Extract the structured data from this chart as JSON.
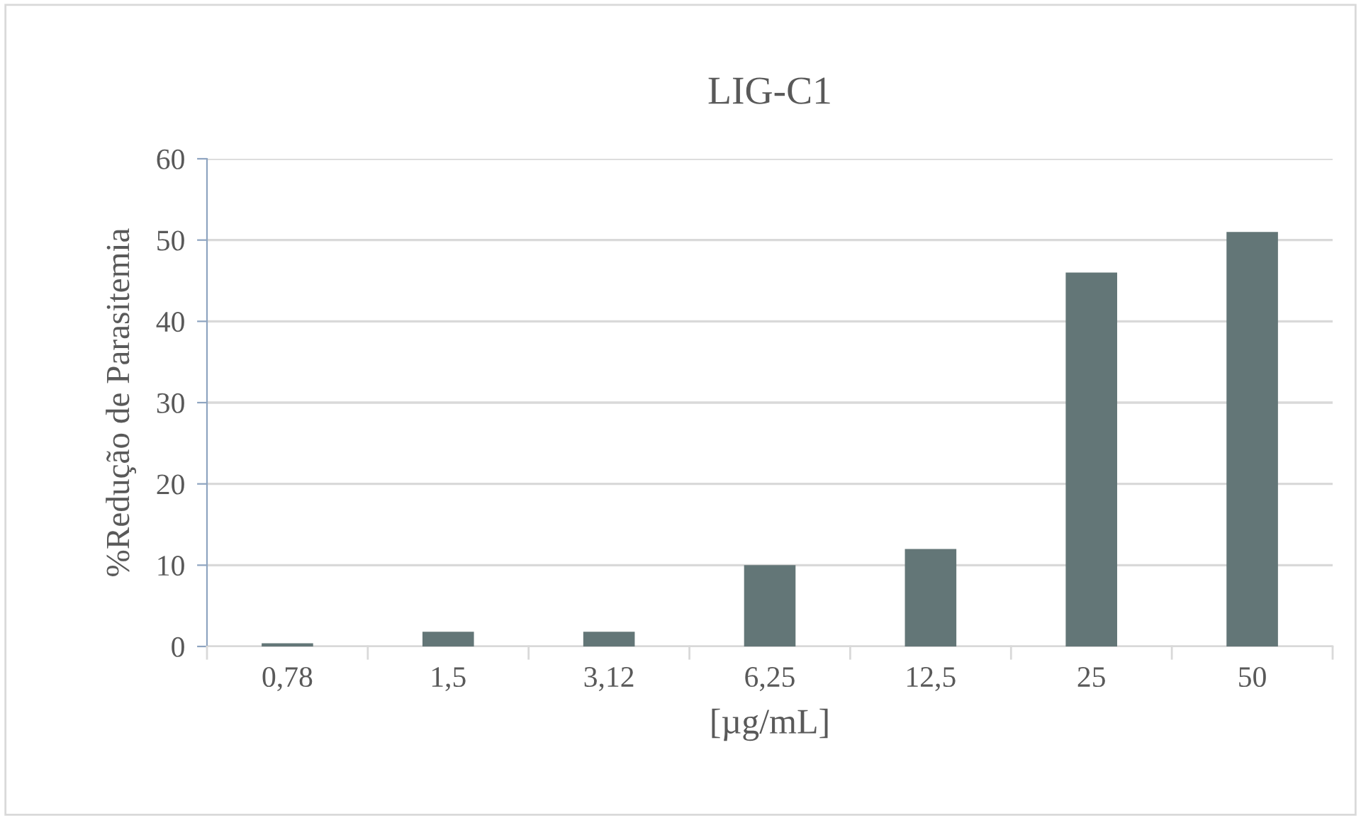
{
  "chart_data": {
    "type": "bar",
    "title": "LIG-C1",
    "xlabel": "[µg/mL]",
    "ylabel": "%Redução de Parasitemia",
    "categories": [
      "0,78",
      "1,5",
      "3,12",
      "6,25",
      "12,5",
      "25",
      "50"
    ],
    "values": [
      0.4,
      1.8,
      1.8,
      10,
      12,
      46,
      51
    ],
    "color": "#637677",
    "ylim": [
      0,
      60
    ],
    "yticks": [
      0,
      10,
      20,
      30,
      40,
      50,
      60
    ],
    "grid": "y",
    "legend": false
  }
}
